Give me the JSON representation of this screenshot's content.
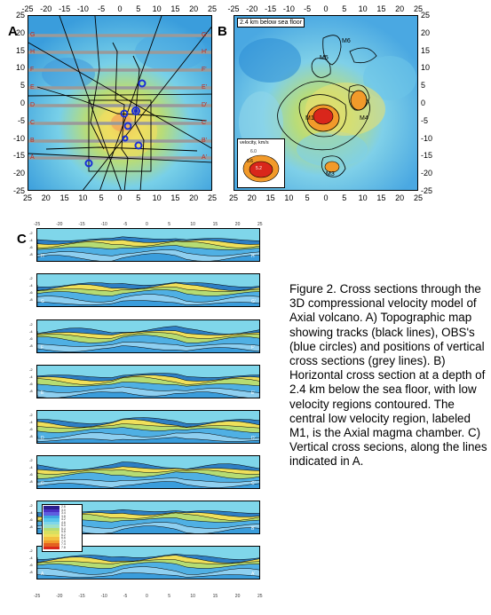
{
  "panels": {
    "a_label": "A",
    "b_label": "B",
    "c_label": "C"
  },
  "map_axes": {
    "x_ticks": [
      "-25",
      "-20",
      "-15",
      "-10",
      "-5",
      "0",
      "5",
      "10",
      "15",
      "20",
      "25"
    ],
    "y_ticks": [
      "25",
      "20",
      "15",
      "10",
      "5",
      "0",
      "-5",
      "-10",
      "-15",
      "-20",
      "-25"
    ],
    "bottom_x_ticks": [
      "25",
      "20",
      "15",
      "10",
      "5",
      "0",
      "5",
      "10",
      "15",
      "20",
      "25"
    ]
  },
  "panel_a": {
    "line_labels_left": [
      "G",
      "H",
      "F",
      "E",
      "D",
      "C",
      "B",
      "A"
    ],
    "line_labels_right": [
      "G'",
      "H'",
      "F'",
      "E'",
      "D'",
      "C'",
      "B'",
      "A'"
    ]
  },
  "panel_b": {
    "title": "2.4 km below sea floor",
    "labels": [
      "M6",
      "M5",
      "M4",
      "M1",
      "M3",
      "M2"
    ],
    "legend_title": "velocity, km/s",
    "legend_values": [
      "6.0",
      "5.6",
      "5.2"
    ]
  },
  "panel_c": {
    "x_ticks": [
      "-25",
      "-20",
      "-15",
      "-10",
      "-5",
      "0",
      "5",
      "10",
      "15",
      "20",
      "25"
    ],
    "sections": [
      {
        "left": "H",
        "right": "H'"
      },
      {
        "left": "G",
        "right": "G'"
      },
      {
        "left": "F",
        "right": "F'"
      },
      {
        "left": "E",
        "right": "E'"
      },
      {
        "left": "D",
        "right": "D'"
      },
      {
        "left": "C",
        "right": "C'"
      },
      {
        "left": "B",
        "right": "B'"
      },
      {
        "left": "A",
        "right": "A'"
      }
    ],
    "depth_ticks": [
      "-2",
      "-4",
      "-6",
      "-8"
    ],
    "legend_values": [
      "2.6",
      "3.0",
      "3.4",
      "3.8",
      "4.2",
      "4.6",
      "5.0",
      "5.4",
      "5.8",
      "6.2",
      "6.6",
      "7.0",
      "7.4",
      "7.8"
    ]
  },
  "caption": "Figure 2. Cross sections through the 3D compressional velocity model of Axial volcano. A) Topographic map showing tracks (black lines), OBS's (blue circles) and positions of vertical cross sections (grey lines). B) Horizontal cross section at a depth of 2.4 km below the sea floor, with low velocity regions contoured. The central low velocity region, labeled M1, is the Axial magma chamber. C) Vertical cross secions, along the lines indicated in A.",
  "colors": {
    "deep_blue": "#3fa6e0",
    "cyan": "#7fd3ea",
    "green": "#b6dc73",
    "yellow": "#f0e05a",
    "orange": "#f29a2a",
    "red": "#d9261b",
    "grey_line": "#999999",
    "obs_blue": "#1a2fd8"
  }
}
